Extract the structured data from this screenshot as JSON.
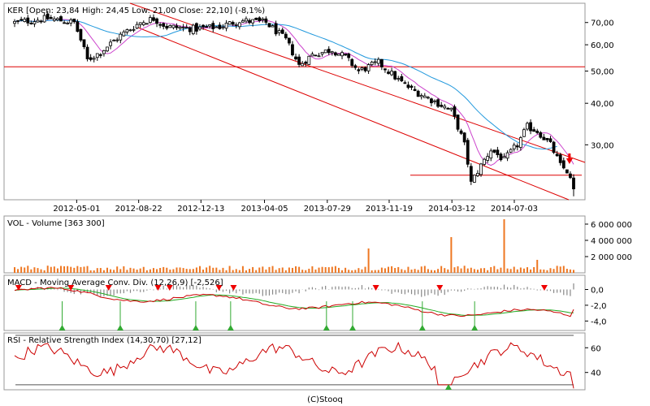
{
  "chart_data": [
    {
      "type": "candlestick",
      "legend": "KER [Open: 23,84  High: 24,45  Low: 21,00  Close: 22,10] (-8,1%)",
      "x_ticks": [
        "2012-05-01",
        "2012-08-22",
        "2012-12-13",
        "2013-04-05",
        "2013-07-29",
        "2013-11-19",
        "2014-03-12",
        "2014-07-03"
      ],
      "y_scale": "log",
      "y_ticks": [
        "70,00",
        "60,00",
        "50,00",
        "40,00",
        "30,00"
      ],
      "y_tick_values": [
        70,
        60,
        50,
        40,
        30
      ],
      "ylim": [
        20.5,
        80
      ],
      "horizontal_lines": [
        51.5,
        24.3
      ],
      "last_close": 22.1,
      "grid": false,
      "colors": {
        "candle": "#000000",
        "ma_short": "#cc44cc",
        "ma_long": "#2299dd",
        "channel": "#dd0000",
        "signal_arrow": "#ee0000"
      }
    },
    {
      "type": "bar",
      "legend": "VOL - Volume [363 300]",
      "y_ticks": [
        "6 000 000",
        "4 000 000",
        "2 000 000"
      ],
      "y_tick_values": [
        6000000,
        4000000,
        2000000
      ],
      "ylim": [
        0,
        7000000
      ],
      "last_value": 363300,
      "spikes": [
        {
          "position": 0.63,
          "value": 3000000
        },
        {
          "position": 0.77,
          "value": 4400000
        },
        {
          "position": 0.86,
          "value": 6600000
        },
        {
          "position": 0.92,
          "value": 1600000
        }
      ],
      "colors": {
        "bar": "#ee7722"
      }
    },
    {
      "type": "line",
      "legend": "MACD - Moving Average Conv. Div. (12,26,9) [-2,526]",
      "y_ticks": [
        "0,0",
        "-2,0",
        "-4,0"
      ],
      "y_tick_values": [
        0,
        -2,
        -4
      ],
      "ylim": [
        -5.2,
        1.8
      ],
      "last_value": -2.526,
      "sell_signals": [
        0.025,
        0.115,
        0.18,
        0.265,
        0.285,
        0.37,
        0.395,
        0.64,
        0.75,
        0.93
      ],
      "buy_signals": [
        0.1,
        0.2,
        0.33,
        0.39,
        0.555,
        0.6,
        0.72,
        0.81
      ],
      "colors": {
        "macd": "#cc0000",
        "signal": "#22aa22",
        "histogram": "#888888",
        "sell_marker": "#ee0000",
        "buy_marker": "#33aa33"
      }
    },
    {
      "type": "line",
      "legend": "RSI - Relative Strength Index (14,30,70) [27,12]",
      "y_ticks": [
        "60",
        "40"
      ],
      "y_tick_values": [
        60,
        40
      ],
      "ylim": [
        26,
        72
      ],
      "reference_levels": [
        70,
        30
      ],
      "last_value": 27.12,
      "buy_signals": [
        0.765
      ],
      "colors": {
        "rsi": "#cc0000",
        "reference": "#555555",
        "buy_marker": "#33aa33"
      }
    }
  ],
  "footer": {
    "credit": "(C)Stooq"
  }
}
